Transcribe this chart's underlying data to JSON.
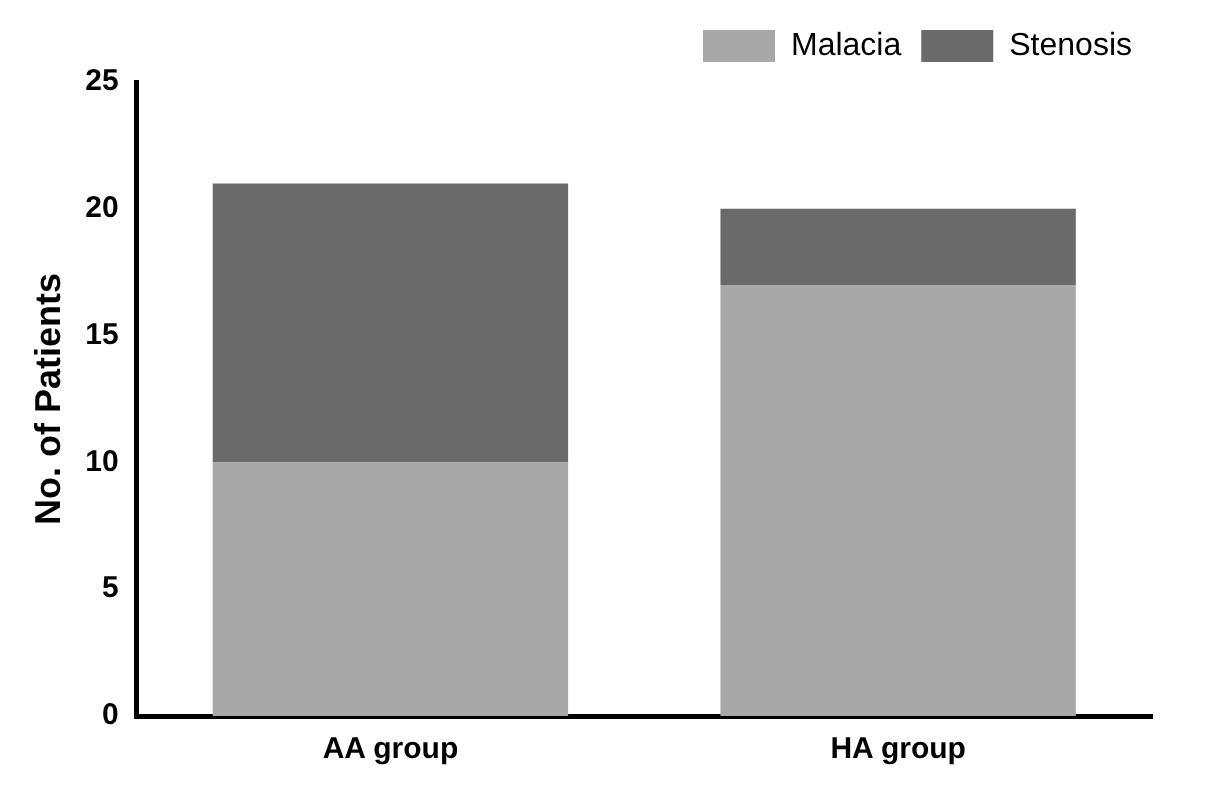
{
  "chart_data": {
    "type": "bar",
    "stacked": true,
    "ylabel": "No. of Patients",
    "categories": [
      "AA group",
      "HA group"
    ],
    "series": [
      {
        "name": "Malacia",
        "color": "#a8a8a8",
        "values": [
          10,
          17
        ]
      },
      {
        "name": "Stenosis",
        "color": "#6a6a6a",
        "values": [
          11,
          3
        ]
      }
    ],
    "ylim": [
      0,
      25
    ],
    "yticks": [
      0,
      5,
      10,
      15,
      20,
      25
    ],
    "grid": false,
    "legend": "top right"
  }
}
